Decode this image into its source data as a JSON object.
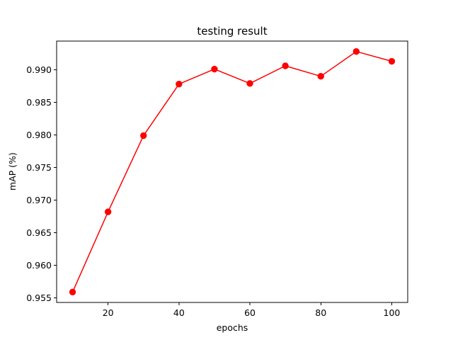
{
  "chart_data": {
    "type": "line",
    "title": "testing result",
    "xlabel": "epochs",
    "ylabel": "mAP (%)",
    "xlim": [
      5.5,
      104.5
    ],
    "ylim": [
      0.9543,
      0.9944
    ],
    "xticks": [
      20,
      40,
      60,
      80,
      100
    ],
    "xtick_labels": [
      "20",
      "40",
      "60",
      "80",
      "100"
    ],
    "yticks": [
      0.955,
      0.96,
      0.965,
      0.97,
      0.975,
      0.98,
      0.985,
      0.99
    ],
    "ytick_labels": [
      "0.955",
      "0.960",
      "0.965",
      "0.970",
      "0.975",
      "0.980",
      "0.985",
      "0.990"
    ],
    "grid": false,
    "color": "#ff0000",
    "marker": "circle",
    "x": [
      10,
      20,
      30,
      40,
      50,
      60,
      70,
      80,
      90,
      100
    ],
    "y": [
      0.9559,
      0.9682,
      0.9799,
      0.9878,
      0.9901,
      0.9879,
      0.9906,
      0.989,
      0.9928,
      0.9913
    ]
  }
}
